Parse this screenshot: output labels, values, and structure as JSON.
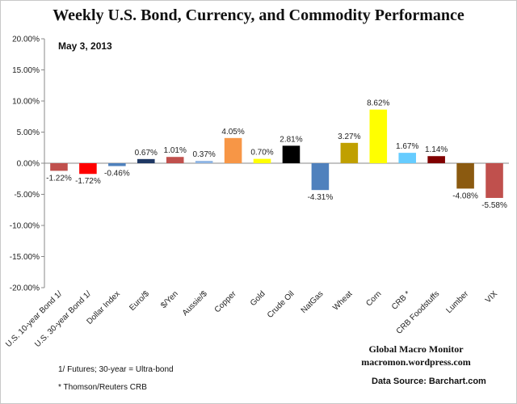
{
  "chart_data": {
    "type": "bar",
    "title": "Weekly U.S. Bond, Currency, and Commodity Performance",
    "subtitle": "May 3, 2013",
    "categories": [
      "U.S. 10-year Bond 1/",
      "U.S. 30-year Bond 1/",
      "Dollar Index",
      "Euro/$",
      "$/Yen",
      "Aussie/$",
      "Copper",
      "Gold",
      "Crude Oil",
      "NatGas",
      "Wheat",
      "Corn",
      "CRB *",
      "CRB Foodstuffs",
      "Lumber",
      "VIX"
    ],
    "values": [
      -1.22,
      -1.72,
      -0.46,
      0.67,
      1.01,
      0.37,
      4.05,
      0.7,
      2.81,
      -4.31,
      3.27,
      8.62,
      1.67,
      1.14,
      -4.08,
      -5.58
    ],
    "data_labels": [
      "-1.22%",
      "-1.72%",
      "-0.46%",
      "0.67%",
      "1.01%",
      "0.37%",
      "4.05%",
      "0.70%",
      "2.81%",
      "-4.31%",
      "3.27%",
      "8.62%",
      "1.67%",
      "1.14%",
      "-4.08%",
      "-5.58%"
    ],
    "colors": [
      "#c0504d",
      "#ff0000",
      "#4f81bd",
      "#1f3864",
      "#c0504d",
      "#8eb4e3",
      "#f79646",
      "#ffff00",
      "#000000",
      "#4f81bd",
      "#c0a000",
      "#ffff00",
      "#66ccff",
      "#800000",
      "#8b5a10",
      "#c0504d"
    ],
    "ylim": [
      -20,
      20
    ],
    "yticks": [
      -20,
      -15,
      -10,
      -5,
      0,
      5,
      10,
      15,
      20
    ],
    "ytick_labels": [
      "-20.00%",
      "-15.00%",
      "-10.00%",
      "-5.00%",
      "0.00%",
      "5.00%",
      "10.00%",
      "15.00%",
      "20.00%"
    ],
    "xlabel": "",
    "ylabel": "",
    "grid": false,
    "legend": "none"
  },
  "footnotes": {
    "note1": "1/  Futures; 30-year = Ultra-bond",
    "note2": "* Thomson/Reuters CRB"
  },
  "branding": {
    "name": "Global Macro Monitor",
    "site": "macromon.wordpress.com",
    "source": "Data Source:  Barchart.com"
  }
}
